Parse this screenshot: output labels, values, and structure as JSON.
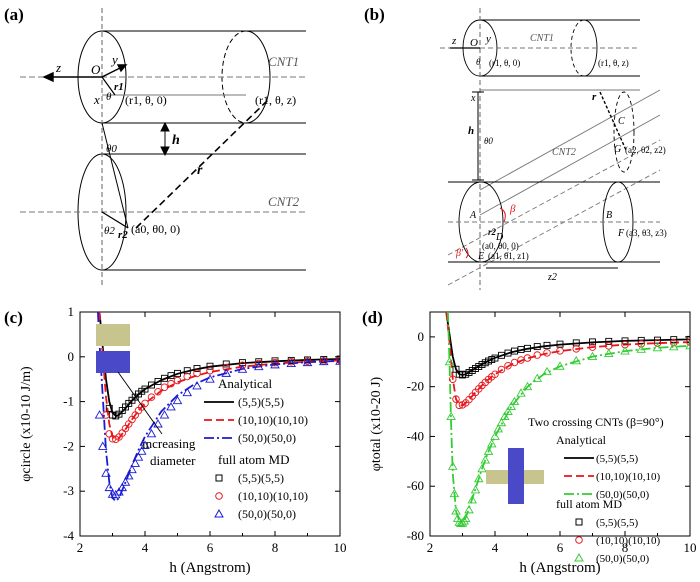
{
  "panels": {
    "a": {
      "tag": "(a)",
      "labels": {
        "z": "z",
        "y": "y",
        "x": "x",
        "O": "O",
        "r1": "r1",
        "theta": "θ",
        "pt1": "(r1, θ, 0)",
        "pt2": "(r1, θ, z)",
        "cnt1": "CNT1",
        "cnt2": "CNT2",
        "h": "h",
        "theta0": "θ0",
        "r": "r",
        "theta2": "θ2",
        "r2": "r2",
        "pt3": "(a0, θ0, 0)"
      }
    },
    "b": {
      "tag": "(b)",
      "labels": {
        "z": "z",
        "O": "O",
        "y": "y",
        "theta": "θ",
        "pt1": "(r1, θ, 0)",
        "pt2": "(r1, θ, z)",
        "cnt1": "CNT1",
        "x": "x",
        "r": "r",
        "h": "h",
        "theta0": "θ0",
        "C": "C",
        "G": "G",
        "ptG": "(a2, θ2, z2)",
        "cnt2": "CNT2",
        "beta": "β",
        "A": "A",
        "r2": "r2",
        "D": "D",
        "ptD": "(a0, θ0, 0)",
        "ptE": "(a1, θ1, z1)",
        "E": "E",
        "betaPrime": "β'",
        "B": "B",
        "F": "F",
        "ptF": "(a3, θ3, z3)",
        "z2": "z2"
      }
    },
    "c": {
      "tag": "(c)",
      "annotation": [
        "increasing",
        "diameter"
      ],
      "legend": {
        "analytical": "Analytical",
        "md": "full atom MD",
        "items": [
          "(5,5)(5,5)",
          "(10,10)(10,10)",
          "(50,0)(50,0)"
        ]
      }
    },
    "d": {
      "tag": "(d)",
      "legend": {
        "header": "Two crossing CNTs (β=90°)",
        "analytical": "Analytical",
        "md": "full atom MD",
        "items": [
          "(5,5)(5,5)",
          "(10,10)(10,10)",
          "(50,0)(50,0)"
        ]
      }
    }
  },
  "colors": {
    "series": [
      "#000000",
      "#e8161a",
      "#1a1ad4"
    ],
    "series_d": [
      "#000000",
      "#e8161a",
      "#33cc33"
    ],
    "tube": "#c8c48e",
    "tube_cross": "#4a4ac8"
  },
  "chart_data": [
    {
      "type": "line",
      "panel": "c",
      "xlabel": "h (Angstrom)",
      "ylabel": "φcircle (x10-10 J/m)",
      "xlim": [
        2,
        10
      ],
      "ylim": [
        -4,
        1
      ],
      "xticks": [
        "2",
        "4",
        "6",
        "8",
        "10"
      ],
      "yticks": [
        "1",
        "0",
        "-1",
        "-2",
        "-3",
        "-4"
      ],
      "series": [
        {
          "name": "(5,5)(5,5)",
          "kind": "analytical",
          "x": [
            2.6,
            2.7,
            2.8,
            2.9,
            3.0,
            3.1,
            3.2,
            3.4,
            3.6,
            3.8,
            4.0,
            4.5,
            5.0,
            5.5,
            6.0,
            7.0,
            8.0,
            9.0,
            10.0
          ],
          "y": [
            1.0,
            0.2,
            -0.5,
            -1.0,
            -1.25,
            -1.32,
            -1.3,
            -1.15,
            -0.98,
            -0.84,
            -0.72,
            -0.52,
            -0.38,
            -0.29,
            -0.22,
            -0.14,
            -0.1,
            -0.07,
            -0.05
          ]
        },
        {
          "name": "(10,10)(10,10)",
          "kind": "analytical",
          "x": [
            2.6,
            2.7,
            2.8,
            2.9,
            3.0,
            3.1,
            3.2,
            3.4,
            3.6,
            3.8,
            4.0,
            4.5,
            5.0,
            5.5,
            6.0,
            7.0,
            8.0,
            9.0,
            10.0
          ],
          "y": [
            1.0,
            0.0,
            -0.9,
            -1.5,
            -1.78,
            -1.85,
            -1.82,
            -1.62,
            -1.4,
            -1.2,
            -1.04,
            -0.76,
            -0.57,
            -0.44,
            -0.34,
            -0.22,
            -0.15,
            -0.11,
            -0.08
          ]
        },
        {
          "name": "(50,0)(50,0)",
          "kind": "analytical",
          "x": [
            2.55,
            2.6,
            2.7,
            2.8,
            2.9,
            3.0,
            3.1,
            3.2,
            3.4,
            3.6,
            3.8,
            4.0,
            4.5,
            5.0,
            5.5,
            6.0,
            7.0,
            8.0,
            9.0,
            10.0
          ],
          "y": [
            1.0,
            0.3,
            -0.9,
            -2.1,
            -2.8,
            -3.15,
            -3.22,
            -3.15,
            -2.8,
            -2.42,
            -2.08,
            -1.78,
            -1.22,
            -0.86,
            -0.62,
            -0.46,
            -0.27,
            -0.17,
            -0.12,
            -0.09
          ]
        },
        {
          "name": "(5,5)(5,5)",
          "kind": "md",
          "x": [
            2.9,
            3.0,
            3.1,
            3.2,
            3.3,
            3.4,
            3.5,
            3.6,
            3.7,
            3.8,
            3.9,
            4.0,
            4.2,
            4.4,
            4.6,
            4.8,
            5.0,
            5.3,
            5.6,
            6.0,
            6.5,
            7.0,
            7.5,
            8.0,
            8.5,
            9.0,
            9.5,
            10.0
          ],
          "y": [
            -1.15,
            -1.3,
            -1.32,
            -1.28,
            -1.2,
            -1.12,
            -1.04,
            -0.97,
            -0.9,
            -0.83,
            -0.77,
            -0.72,
            -0.63,
            -0.55,
            -0.48,
            -0.42,
            -0.37,
            -0.31,
            -0.26,
            -0.21,
            -0.16,
            -0.13,
            -0.11,
            -0.09,
            -0.08,
            -0.07,
            -0.06,
            -0.05
          ]
        },
        {
          "name": "(10,10)(10,10)",
          "kind": "md",
          "x": [
            2.8,
            2.9,
            3.0,
            3.1,
            3.2,
            3.3,
            3.4,
            3.5,
            3.6,
            3.7,
            3.8,
            3.9,
            4.0,
            4.2,
            4.4,
            4.6,
            4.8,
            5.0,
            5.3,
            5.6,
            6.0,
            6.5,
            7.0,
            7.5,
            8.0,
            8.5,
            9.0,
            9.5,
            10.0
          ],
          "y": [
            -1.3,
            -1.72,
            -1.83,
            -1.84,
            -1.79,
            -1.7,
            -1.6,
            -1.5,
            -1.4,
            -1.3,
            -1.2,
            -1.12,
            -1.04,
            -0.9,
            -0.78,
            -0.68,
            -0.6,
            -0.53,
            -0.44,
            -0.37,
            -0.31,
            -0.24,
            -0.19,
            -0.15,
            -0.13,
            -0.11,
            -0.1,
            -0.09,
            -0.08
          ]
        },
        {
          "name": "(50,0)(50,0)",
          "kind": "md",
          "x": [
            2.6,
            2.7,
            2.8,
            2.9,
            3.0,
            3.1,
            3.2,
            3.3,
            3.4,
            3.5,
            3.6,
            3.7,
            3.8,
            3.9,
            4.0,
            4.2,
            4.4,
            4.6,
            4.8,
            5.0,
            5.3,
            5.6,
            6.0,
            6.5,
            7.0,
            7.5,
            8.0,
            8.5,
            9.0,
            9.5,
            10.0
          ],
          "y": [
            -1.3,
            -2.0,
            -2.6,
            -2.92,
            -3.07,
            -3.08,
            -3.02,
            -2.92,
            -2.8,
            -2.66,
            -2.52,
            -2.38,
            -2.24,
            -2.11,
            -1.98,
            -1.72,
            -1.5,
            -1.3,
            -1.12,
            -0.98,
            -0.8,
            -0.65,
            -0.5,
            -0.37,
            -0.28,
            -0.22,
            -0.18,
            -0.15,
            -0.13,
            -0.11,
            -0.1
          ]
        }
      ]
    },
    {
      "type": "line",
      "panel": "d",
      "xlabel": "h (Angstrom)",
      "ylabel": "φtotal (x10-20 J)",
      "xlim": [
        2,
        10
      ],
      "ylim": [
        -80,
        10
      ],
      "xticks": [
        "2",
        "4",
        "6",
        "8",
        "10"
      ],
      "yticks": [
        "0",
        "-20",
        "-40",
        "-60",
        "-80"
      ],
      "series": [
        {
          "name": "(5,5)(5,5)",
          "kind": "analytical",
          "x": [
            2.5,
            2.6,
            2.7,
            2.8,
            2.9,
            3.0,
            3.1,
            3.2,
            3.4,
            3.6,
            3.8,
            4.0,
            4.5,
            5.0,
            5.5,
            6.0,
            7.0,
            8.0,
            9.0,
            10.0
          ],
          "y": [
            10,
            1,
            -8,
            -13,
            -15,
            -15.3,
            -15,
            -14.2,
            -12.6,
            -11,
            -9.6,
            -8.4,
            -6.2,
            -4.8,
            -3.8,
            -3.1,
            -2.2,
            -1.6,
            -1.3,
            -1.0
          ]
        },
        {
          "name": "(10,10)(10,10)",
          "kind": "analytical",
          "x": [
            2.5,
            2.6,
            2.7,
            2.8,
            2.9,
            3.0,
            3.1,
            3.2,
            3.4,
            3.6,
            3.8,
            4.0,
            4.5,
            5.0,
            5.5,
            6.0,
            7.0,
            8.0,
            9.0,
            10.0
          ],
          "y": [
            10,
            -2,
            -17,
            -25,
            -27.5,
            -27.5,
            -26.5,
            -25.2,
            -22.3,
            -19.5,
            -17.1,
            -15,
            -11.1,
            -8.6,
            -6.9,
            -5.7,
            -4.1,
            -3.1,
            -2.5,
            -2.1
          ]
        },
        {
          "name": "(50,0)(50,0)",
          "kind": "analytical",
          "x": [
            2.55,
            2.6,
            2.65,
            2.7,
            2.8,
            2.9,
            3.0,
            3.1,
            3.2,
            3.4,
            3.6,
            3.8,
            4.0,
            4.5,
            5.0,
            5.5,
            6.0,
            7.0,
            8.0,
            9.0,
            10.0
          ],
          "y": [
            10,
            -10,
            -35,
            -55,
            -70,
            -74,
            -74.5,
            -72.5,
            -69,
            -61,
            -53,
            -46,
            -40,
            -28,
            -20,
            -15,
            -11.8,
            -7.9,
            -5.7,
            -4.4,
            -3.6
          ]
        },
        {
          "name": "(5,5)(5,5)",
          "kind": "md",
          "x": [
            2.8,
            2.9,
            3.0,
            3.1,
            3.2,
            3.3,
            3.4,
            3.5,
            3.6,
            3.7,
            3.8,
            3.9,
            4.0,
            4.2,
            4.4,
            4.6,
            4.8,
            5.0,
            5.3,
            5.6,
            6.0,
            6.5,
            7.0,
            7.5,
            8.0,
            8.5,
            9.0,
            9.5,
            10.0
          ],
          "y": [
            -13,
            -15,
            -15.3,
            -15,
            -14.3,
            -13.5,
            -12.7,
            -11.9,
            -11.1,
            -10.4,
            -9.7,
            -9.1,
            -8.5,
            -7.4,
            -6.5,
            -5.7,
            -5.1,
            -4.6,
            -3.9,
            -3.4,
            -2.9,
            -2.4,
            -2.0,
            -1.8,
            -1.6,
            -1.4,
            -1.3,
            -1.1,
            -1.0
          ]
        },
        {
          "name": "(10,10)(10,10)",
          "kind": "md",
          "x": [
            2.7,
            2.8,
            2.9,
            3.0,
            3.1,
            3.2,
            3.3,
            3.4,
            3.5,
            3.6,
            3.7,
            3.8,
            3.9,
            4.0,
            4.2,
            4.4,
            4.6,
            4.8,
            5.0,
            5.3,
            5.6,
            6.0,
            6.5,
            7.0,
            7.5,
            8.0,
            8.5,
            9.0,
            9.5,
            10.0
          ],
          "y": [
            -17,
            -25,
            -27.5,
            -27.3,
            -26.5,
            -25.2,
            -23.8,
            -22.3,
            -20.9,
            -19.5,
            -18.3,
            -17.1,
            -16,
            -15,
            -13.1,
            -11.6,
            -10.3,
            -9.3,
            -8.5,
            -7.3,
            -6.4,
            -5.6,
            -4.8,
            -4.1,
            -3.6,
            -3.1,
            -2.8,
            -2.5,
            -2.3,
            -2.1
          ]
        },
        {
          "name": "(50,0)(50,0)",
          "kind": "md",
          "x": [
            2.6,
            2.65,
            2.7,
            2.75,
            2.8,
            2.85,
            2.9,
            2.95,
            3.0,
            3.05,
            3.1,
            3.2,
            3.3,
            3.4,
            3.5,
            3.6,
            3.7,
            3.8,
            3.9,
            4.0,
            4.1,
            4.2,
            4.3,
            4.4,
            4.5,
            4.6,
            4.8,
            5.0,
            5.3,
            5.6,
            6.0,
            6.5,
            7.0,
            7.5,
            8.0,
            8.5,
            9.0,
            9.5,
            10.0
          ],
          "y": [
            -10,
            -32,
            -52,
            -63,
            -70,
            -73,
            -74.5,
            -75,
            -74.8,
            -74,
            -73,
            -69.5,
            -65.5,
            -61.5,
            -57,
            -53,
            -49.5,
            -46,
            -43,
            -40,
            -37,
            -34.5,
            -32,
            -30,
            -28,
            -26,
            -22.6,
            -20,
            -16.7,
            -14,
            -11.8,
            -9.6,
            -7.9,
            -6.7,
            -5.7,
            -5.0,
            -4.4,
            -4.0,
            -3.6
          ]
        }
      ]
    }
  ]
}
